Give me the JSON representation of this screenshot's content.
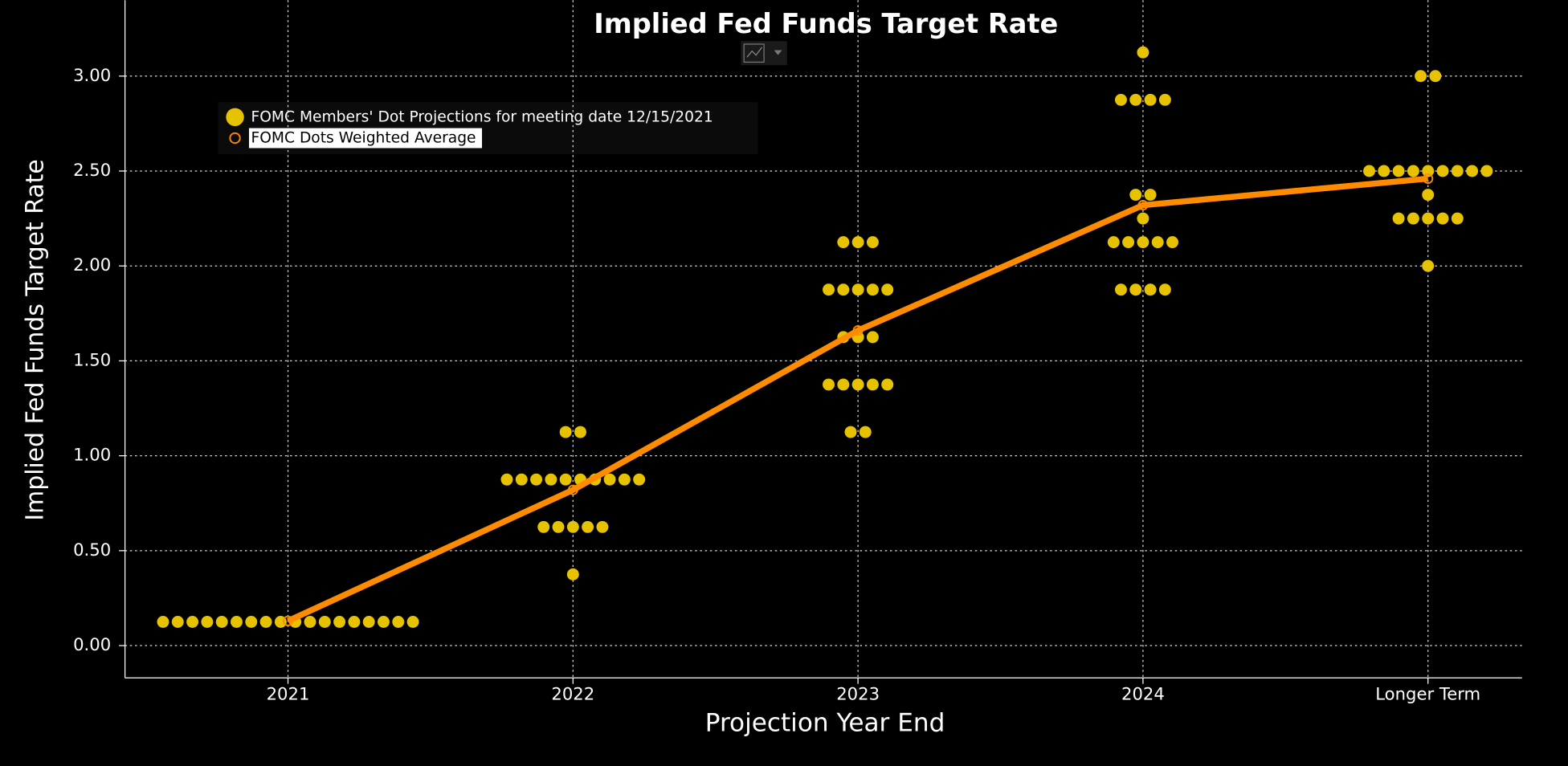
{
  "chart_data": {
    "type": "scatter",
    "title": "Implied Fed Funds Target Rate",
    "x_label": "Projection Year End",
    "y_label": "Implied Fed Funds Target Rate",
    "categories": [
      "2021",
      "2022",
      "2023",
      "2024",
      "Longer Term"
    ],
    "series": [
      {
        "name": "FOMC Members' Dot Projections for meeting date 12/15/2021",
        "color": "#e6c200",
        "type": "scatter",
        "values": [
          [
            0.125,
            0.125,
            0.125,
            0.125,
            0.125,
            0.125,
            0.125,
            0.125,
            0.125,
            0.125,
            0.125,
            0.125,
            0.125,
            0.125,
            0.125,
            0.125,
            0.125,
            0.125
          ],
          [
            1.125,
            1.125,
            0.875,
            0.875,
            0.875,
            0.875,
            0.875,
            0.875,
            0.875,
            0.875,
            0.875,
            0.875,
            0.625,
            0.625,
            0.625,
            0.625,
            0.625,
            0.375
          ],
          [
            2.125,
            2.125,
            2.125,
            1.875,
            1.875,
            1.875,
            1.875,
            1.875,
            1.625,
            1.625,
            1.625,
            1.375,
            1.375,
            1.375,
            1.375,
            1.375,
            1.125,
            1.125
          ],
          [
            3.125,
            2.875,
            2.875,
            2.875,
            2.875,
            2.375,
            2.375,
            2.25,
            2.125,
            2.125,
            2.125,
            2.125,
            2.125,
            1.875,
            1.875,
            1.875,
            1.875
          ],
          [
            3.0,
            3.0,
            2.5,
            2.5,
            2.5,
            2.5,
            2.5,
            2.5,
            2.5,
            2.5,
            2.5,
            2.375,
            2.25,
            2.25,
            2.25,
            2.25,
            2.25,
            2.0
          ]
        ]
      },
      {
        "name": "FOMC Dots Weighted Average",
        "color": "#ff8c00",
        "type": "line",
        "values": [
          0.13,
          0.82,
          1.66,
          2.32,
          2.46
        ]
      }
    ],
    "ylim": [
      -0.17,
      3.4
    ],
    "yticks": [
      {
        "value": 0,
        "label": "0.00"
      },
      {
        "value": 0.5,
        "label": "0.50"
      },
      {
        "value": 1,
        "label": "1.00"
      },
      {
        "value": 1.5,
        "label": "1.50"
      },
      {
        "value": 2,
        "label": "2.00"
      },
      {
        "value": 2.5,
        "label": "2.50"
      },
      {
        "value": 3,
        "label": "3.00"
      }
    ],
    "grid": true
  }
}
